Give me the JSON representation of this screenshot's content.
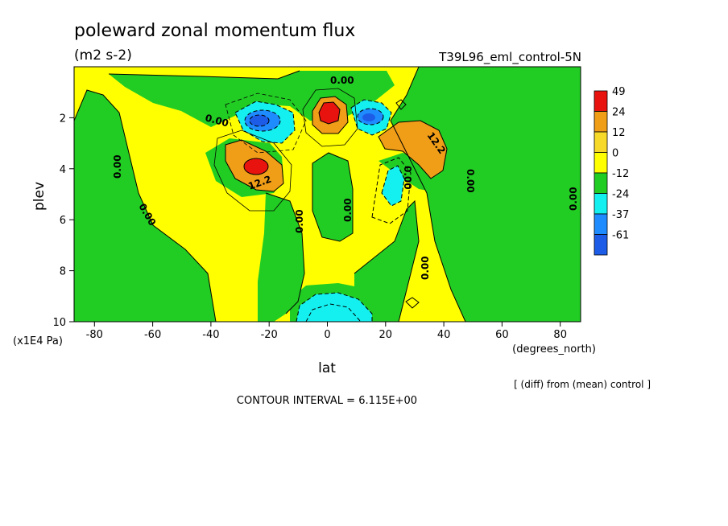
{
  "chart_data": {
    "type": "heatmap",
    "title": "poleward zonal momentum flux",
    "units": "(m2 s-2)",
    "run_label": "T39L96_eml_control-5N",
    "xlabel": "lat",
    "x_units": "(degrees_north)",
    "ylabel": "plev",
    "y_units": "(x1E4 Pa)",
    "xlim": [
      -87,
      87
    ],
    "ylim": [
      10,
      0
    ],
    "x_ticks": [
      -80,
      -60,
      -40,
      -20,
      0,
      20,
      40,
      60,
      80
    ],
    "x_tick_labels": [
      "-80",
      "-60",
      "-40",
      "-20",
      "0",
      "20",
      "40",
      "60",
      "80"
    ],
    "y_ticks": [
      2,
      4,
      6,
      8,
      10
    ],
    "y_tick_labels": [
      "2",
      "4",
      "6",
      "8",
      "10"
    ],
    "colorbar": {
      "labels": [
        "49",
        "24",
        "12",
        "0",
        "-12",
        "-24",
        "-37",
        "-61"
      ],
      "colors": [
        "#e8130f",
        "#f09d17",
        "#f7d92a",
        "#ffff00",
        "#21cd23",
        "#14f0f0",
        "#1e8cff",
        "#1c5ce6"
      ]
    },
    "contour_labels": [
      "0.00",
      "0.00",
      "0.00",
      "0.00",
      "0.00",
      "0.00",
      "0.00",
      "0.00",
      "0.00",
      "12.2",
      "12.2"
    ],
    "contour_interval_text": "CONTOUR INTERVAL = 6.115E+00",
    "note": "[ (diff) from (mean) control ]",
    "features": [
      {
        "lat": 0,
        "plev": 1.9,
        "value": 49,
        "kind": "max"
      },
      {
        "lat": -25,
        "plev": 3.9,
        "value": 49,
        "kind": "max"
      },
      {
        "lat": 35,
        "plev": 3.0,
        "value": 24,
        "kind": "max"
      },
      {
        "lat": -22,
        "plev": 2.3,
        "value": -37,
        "kind": "min"
      },
      {
        "lat": 14,
        "plev": 2.1,
        "value": -37,
        "kind": "min"
      },
      {
        "lat": 22,
        "plev": 4.6,
        "value": -24,
        "kind": "min"
      },
      {
        "lat": -2,
        "plev": 9.6,
        "value": -24,
        "kind": "min"
      }
    ]
  }
}
